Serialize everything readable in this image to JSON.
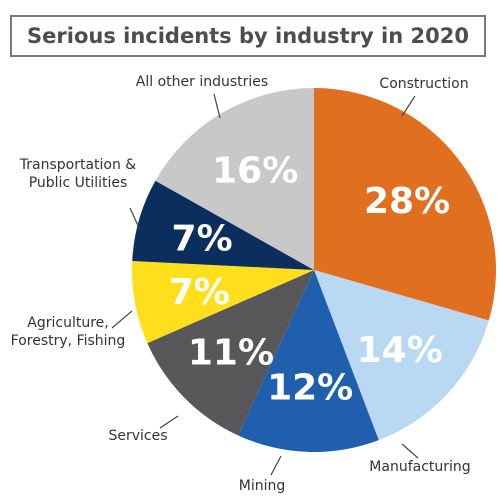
{
  "chart_data": {
    "type": "pie",
    "title": "Serious incidents by industry in 2020",
    "slices": [
      {
        "label": "Construction",
        "value": 28,
        "value_label": "28%",
        "color": "#e07020"
      },
      {
        "label": "Manufacturing",
        "value": 14,
        "value_label": "14%",
        "color": "#b9d8f2"
      },
      {
        "label": "Mining",
        "value": 12,
        "value_label": "12%",
        "color": "#1f5fad"
      },
      {
        "label": "Services",
        "value": 11,
        "value_label": "11%",
        "color": "#58585a"
      },
      {
        "label": "Agriculture, Forestry, Fishing",
        "value": 7,
        "value_label": "7%",
        "color": "#ffdf1b",
        "label_lines": [
          "Agriculture,",
          "Forestry, Fishing"
        ]
      },
      {
        "label": "Transportation & Public Utilities",
        "value": 7,
        "value_label": "7%",
        "color": "#0b2e5e",
        "label_lines": [
          "Transportation &",
          "Public Utilities"
        ]
      },
      {
        "label": "All other industries",
        "value": 16,
        "value_label": "16%",
        "color": "#c8c8c8"
      }
    ]
  }
}
